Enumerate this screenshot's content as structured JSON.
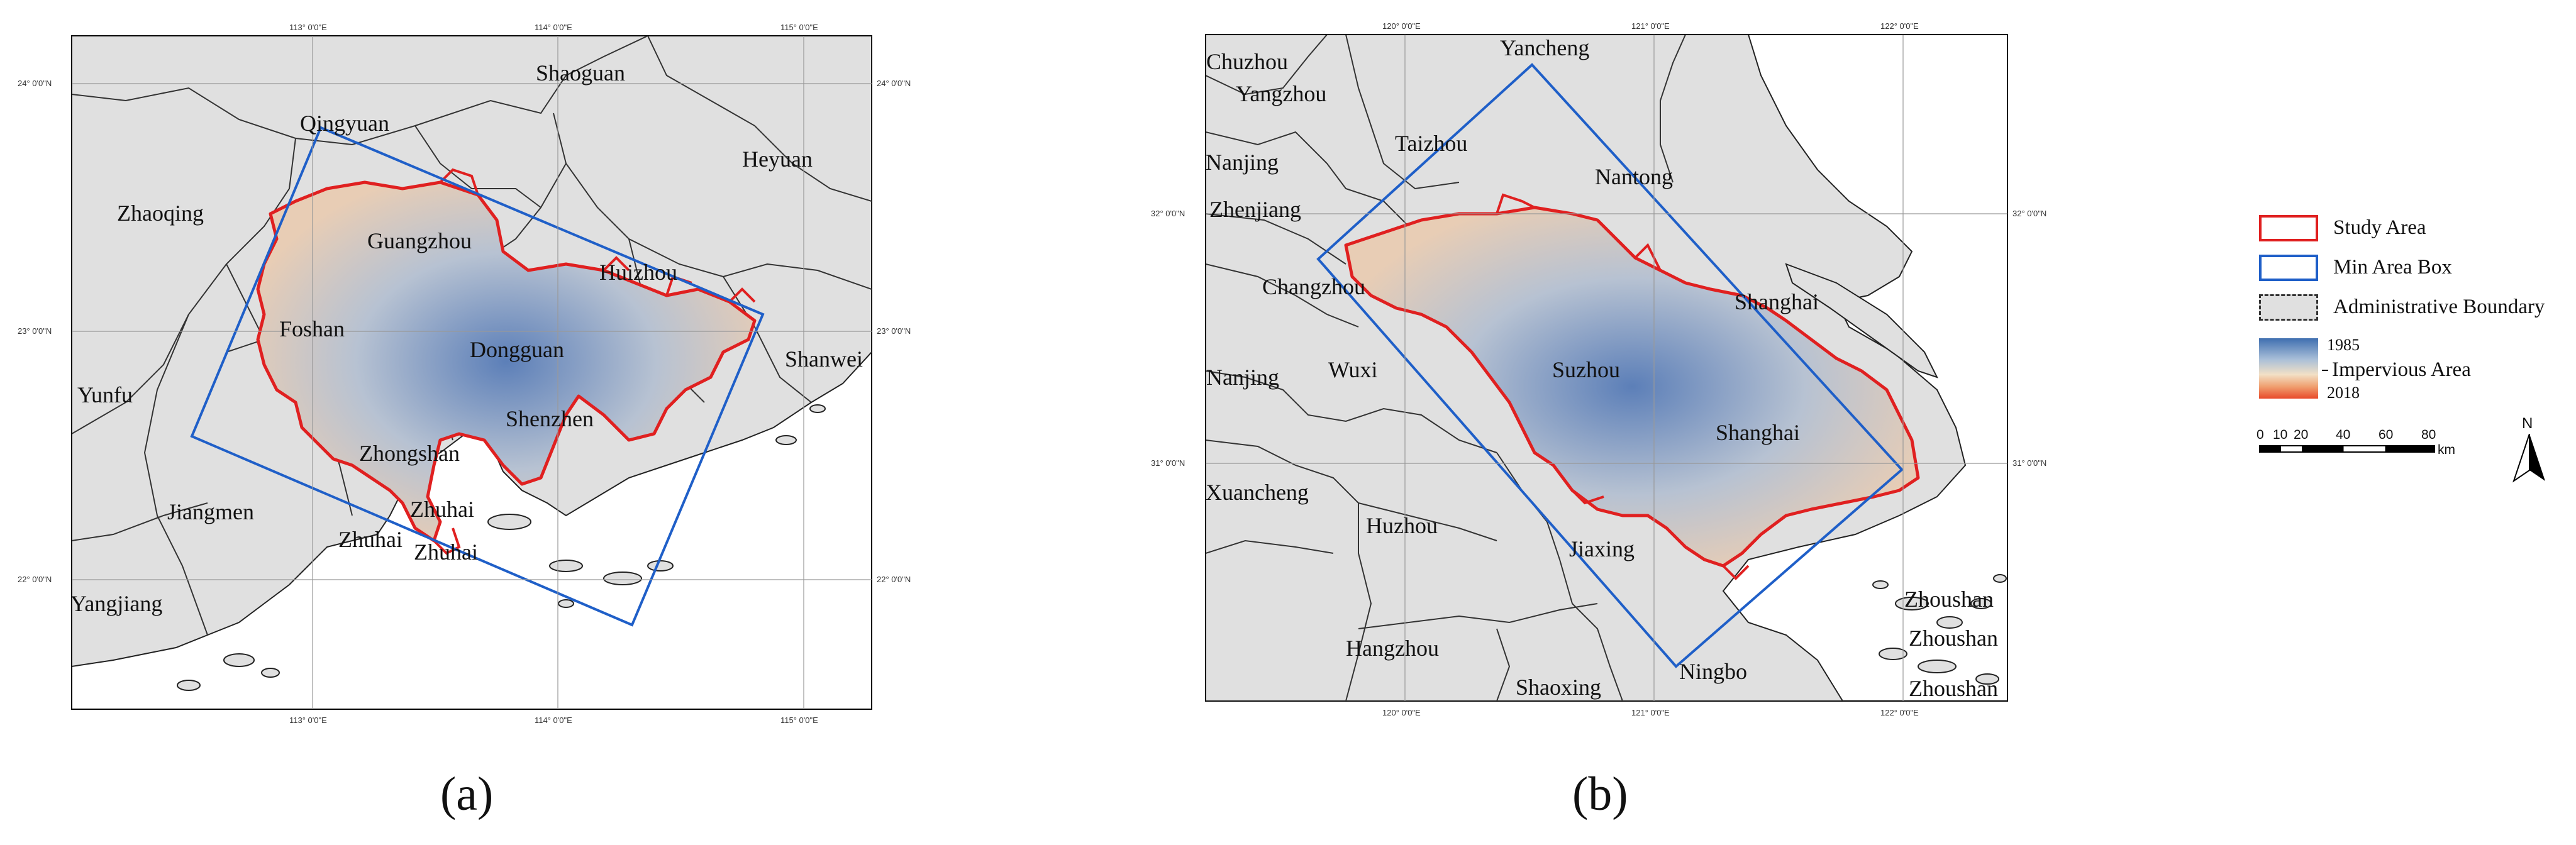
{
  "panel_a": {
    "label": "(a)",
    "cities": [
      {
        "name": "Shaoguan"
      },
      {
        "name": "Qingyuan"
      },
      {
        "name": "Heyuan"
      },
      {
        "name": "Zhaoqing"
      },
      {
        "name": "Guangzhou"
      },
      {
        "name": "Huizhou"
      },
      {
        "name": "Foshan"
      },
      {
        "name": "Dongguan"
      },
      {
        "name": "Shanwei"
      },
      {
        "name": "Yunfu"
      },
      {
        "name": "Shenzhen"
      },
      {
        "name": "Zhongshan"
      },
      {
        "name": "Jiangmen"
      },
      {
        "name": "Zhuhai"
      },
      {
        "name": "Zhuhai"
      },
      {
        "name": "Zhuhai"
      },
      {
        "name": "Yangjiang"
      }
    ],
    "lon_ticks": [
      "113° 0'0\"E",
      "114° 0'0\"E",
      "115° 0'0\"E"
    ],
    "lat_ticks": [
      "24° 0'0\"N",
      "23° 0'0\"N",
      "22° 0'0\"N"
    ]
  },
  "panel_b": {
    "label": "(b)",
    "cities": [
      {
        "name": "Yancheng"
      },
      {
        "name": "Chuzhou"
      },
      {
        "name": "Yangzhou"
      },
      {
        "name": "Taizhou"
      },
      {
        "name": "Nanjing"
      },
      {
        "name": "Nantong"
      },
      {
        "name": "Zhenjiang"
      },
      {
        "name": "Changzhou"
      },
      {
        "name": "Shanghai"
      },
      {
        "name": "Wuxi"
      },
      {
        "name": "Nanjing"
      },
      {
        "name": "Suzhou"
      },
      {
        "name": "Shanghai"
      },
      {
        "name": "Xuancheng"
      },
      {
        "name": "Huzhou"
      },
      {
        "name": "Jiaxing"
      },
      {
        "name": "Hangzhou"
      },
      {
        "name": "Shaoxing"
      },
      {
        "name": "Ningbo"
      },
      {
        "name": "Zhoushan"
      },
      {
        "name": "Zhoushan"
      },
      {
        "name": "Zhoushan"
      }
    ],
    "lon_ticks": [
      "120° 0'0\"E",
      "121° 0'0\"E",
      "122° 0'0\"E"
    ],
    "lat_ticks": [
      "32° 0'0\"N",
      "31° 0'0\"N"
    ]
  },
  "legend": {
    "study_area": "Study Area",
    "min_area_box": "Min Area Box",
    "admin_boundary": "Administrative Boundary",
    "gradient_top": "1985",
    "gradient_title": "Impervious Area",
    "gradient_bottom": "2018",
    "scale_numbers": [
      "0",
      "10",
      "20",
      "40",
      "60",
      "80"
    ],
    "scale_unit": "km",
    "north": "N"
  },
  "colors": {
    "study_area": "#e02020",
    "min_area_box": "#1f5fc8",
    "land": "#e0e0e0",
    "boundary": "#333333",
    "gradient_top": "#3f6fb0",
    "gradient_bottom": "#e84a2a"
  }
}
